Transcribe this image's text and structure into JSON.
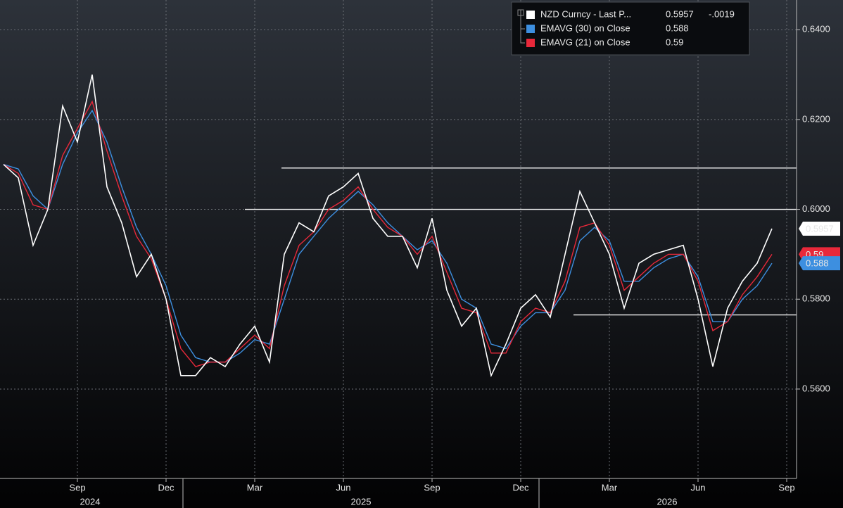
{
  "chart_data": {
    "type": "line",
    "categories": [
      null,
      null,
      null,
      null,
      null,
      "Sep",
      null,
      null,
      null,
      null,
      null,
      "Dec",
      null,
      null,
      null,
      null,
      null,
      "Mar",
      null,
      null,
      null,
      null,
      null,
      "Jun",
      null,
      null,
      null,
      null,
      null,
      "Sep",
      null,
      null,
      null,
      null,
      null,
      "Dec",
      null,
      null,
      null,
      null,
      null,
      "Mar",
      null,
      null,
      null,
      null,
      null,
      "Jun",
      null,
      null,
      null,
      null,
      null,
      "Sep"
    ],
    "x_groups": [
      "2024",
      "2025",
      "2026"
    ],
    "series": [
      {
        "name": "NZD Curncy - Last P...",
        "color": "#ffffff",
        "last_value": 0.5957,
        "change": {
          "value": -0.0019,
          "label": "-.0019"
        },
        "values": [
          0.61,
          0.607,
          0.592,
          0.6,
          0.623,
          0.615,
          0.63,
          0.605,
          0.597,
          0.585,
          0.59,
          0.58,
          0.563,
          0.563,
          0.567,
          0.565,
          0.57,
          0.574,
          0.566,
          0.59,
          0.597,
          0.595,
          0.603,
          0.605,
          0.608,
          0.598,
          0.594,
          0.594,
          0.587,
          0.598,
          0.582,
          0.574,
          0.578,
          0.563,
          0.57,
          0.578,
          0.581,
          0.576,
          0.59,
          0.604,
          0.597,
          0.59,
          0.578,
          0.588,
          0.59,
          0.591,
          0.592,
          0.58,
          0.565,
          0.578,
          0.584,
          0.588,
          0.5957,
          null
        ]
      },
      {
        "name": "EMAVG (30)  on Close",
        "color": "#3d8fe0",
        "last_value": 0.588,
        "values": [
          0.61,
          0.609,
          0.603,
          0.6,
          0.61,
          0.617,
          0.622,
          0.615,
          0.605,
          0.596,
          0.59,
          0.583,
          0.572,
          0.567,
          0.566,
          0.566,
          0.568,
          0.571,
          0.57,
          0.58,
          0.59,
          0.594,
          0.598,
          0.601,
          0.604,
          0.601,
          0.597,
          0.594,
          0.591,
          0.593,
          0.588,
          0.58,
          0.578,
          0.57,
          0.569,
          0.574,
          0.577,
          0.577,
          0.582,
          0.593,
          0.596,
          0.593,
          0.584,
          0.584,
          0.587,
          0.589,
          0.59,
          0.585,
          0.575,
          0.575,
          0.58,
          0.583,
          0.588,
          null
        ]
      },
      {
        "name": "EMAVG (21)  on Close",
        "color": "#e8283a",
        "last_value": 0.59,
        "values": [
          0.61,
          0.608,
          0.601,
          0.6,
          0.612,
          0.618,
          0.624,
          0.613,
          0.603,
          0.594,
          0.589,
          0.58,
          0.569,
          0.565,
          0.566,
          0.566,
          0.569,
          0.572,
          0.569,
          0.583,
          0.592,
          0.595,
          0.6,
          0.602,
          0.605,
          0.6,
          0.596,
          0.594,
          0.59,
          0.594,
          0.586,
          0.578,
          0.577,
          0.568,
          0.568,
          0.575,
          0.578,
          0.577,
          0.584,
          0.596,
          0.597,
          0.592,
          0.582,
          0.585,
          0.588,
          0.59,
          0.59,
          0.584,
          0.573,
          0.575,
          0.581,
          0.585,
          0.59,
          null
        ]
      }
    ],
    "reference_lines": [
      0.6092,
      0.6,
      0.5765
    ],
    "ylim": [
      0.5401,
      0.6466
    ],
    "yticks": [
      {
        "value": 0.56,
        "label": "0.5600"
      },
      {
        "value": 0.58,
        "label": "0.5800"
      },
      {
        "value": 0.6,
        "label": "0.6000"
      },
      {
        "value": 0.62,
        "label": "0.6200"
      },
      {
        "value": 0.64,
        "label": "0.6400"
      }
    ],
    "grid": true
  }
}
